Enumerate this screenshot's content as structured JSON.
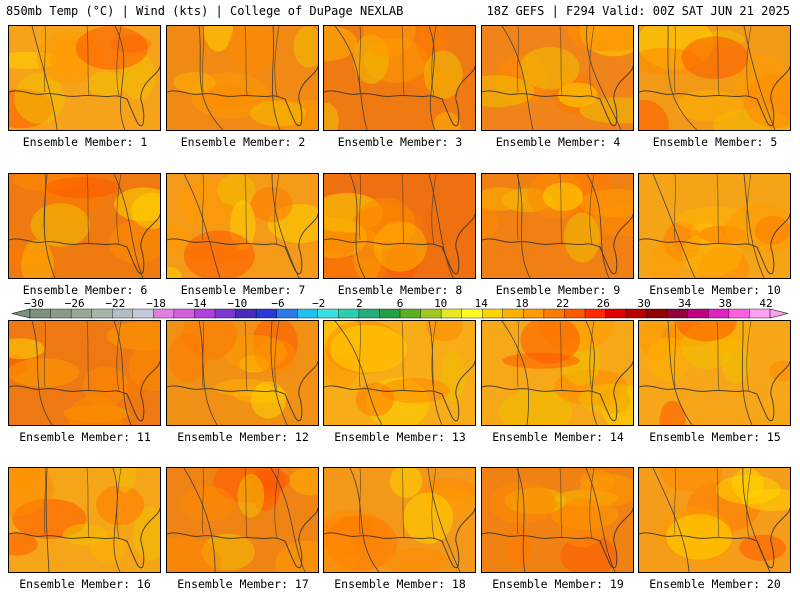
{
  "header": {
    "left": "850mb Temp (°C) | Wind (kts) | College of DuPage NEXLAB",
    "right": "18Z GEFS | F294 Valid: 00Z SAT JUN 21 2025"
  },
  "colorbar": {
    "tick_labels": [
      "-30",
      "-26",
      "-22",
      "-18",
      "-14",
      "-10",
      "-6",
      "-2",
      "2",
      "6",
      "10",
      "14",
      "18",
      "22",
      "26",
      "30",
      "34",
      "38",
      "42"
    ],
    "colors": [
      "#7f8f7f",
      "#8a9a8a",
      "#9aa89a",
      "#a8b4a8",
      "#b4bcc4",
      "#c4c8d8",
      "#e07fe0",
      "#d060e0",
      "#b040e0",
      "#7a3ad0",
      "#4a2ab8",
      "#2a3ad8",
      "#2a7ae8",
      "#22c0f0",
      "#3ae0e0",
      "#2ad0b0",
      "#22b07a",
      "#22a042",
      "#5ab022",
      "#a0c822",
      "#e8e822",
      "#ffff22",
      "#ffd400",
      "#ffb000",
      "#ff9a00",
      "#ff7a00",
      "#ff5a00",
      "#ff2a00",
      "#e00000",
      "#b80000",
      "#900000",
      "#900040",
      "#c00080",
      "#e020c0",
      "#ff60e0",
      "#ffa0f0"
    ]
  },
  "panels": [
    {
      "label": "Ensemble Member: 1",
      "theme": "#f7a21b"
    },
    {
      "label": "Ensemble Member: 2",
      "theme": "#f08a14"
    },
    {
      "label": "Ensemble Member: 3",
      "theme": "#ef7a12"
    },
    {
      "label": "Ensemble Member: 4",
      "theme": "#f0841a"
    },
    {
      "label": "Ensemble Member: 5",
      "theme": "#f29a18"
    },
    {
      "label": "Ensemble Member: 6",
      "theme": "#ee7a10"
    },
    {
      "label": "Ensemble Member: 7",
      "theme": "#f49a18"
    },
    {
      "label": "Ensemble Member: 8",
      "theme": "#ee7010"
    },
    {
      "label": "Ensemble Member: 9",
      "theme": "#f08014"
    },
    {
      "label": "Ensemble Member: 10",
      "theme": "#f5a418"
    },
    {
      "label": "Ensemble Member: 11",
      "theme": "#ee7812"
    },
    {
      "label": "Ensemble Member: 12",
      "theme": "#f09014"
    },
    {
      "label": "Ensemble Member: 13",
      "theme": "#f7ac18"
    },
    {
      "label": "Ensemble Member: 14",
      "theme": "#f6a818"
    },
    {
      "label": "Ensemble Member: 15",
      "theme": "#f7a61a"
    },
    {
      "label": "Ensemble Member: 16",
      "theme": "#f6a418"
    },
    {
      "label": "Ensemble Member: 17",
      "theme": "#ef8414"
    },
    {
      "label": "Ensemble Member: 18",
      "theme": "#f3981a"
    },
    {
      "label": "Ensemble Member: 19",
      "theme": "#f08214"
    },
    {
      "label": "Ensemble Member: 20",
      "theme": "#f59c1a"
    }
  ]
}
